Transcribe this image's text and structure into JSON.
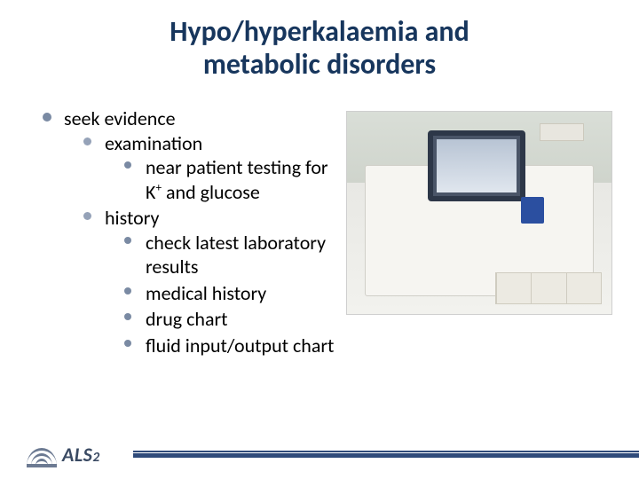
{
  "title_line1": "Hypo/hyperkalaemia and",
  "title_line2": "metabolic disorders",
  "bullets": {
    "seek": "seek evidence",
    "examination": "examination",
    "near_patient": "near patient testing for K",
    "near_patient_sup": "+",
    "near_patient_after": " and glucose",
    "history": "history",
    "check_latest": "check latest laboratory results",
    "medical_history": "medical history",
    "drug_chart": "drug chart",
    "fluid_chart": "fluid input/output chart"
  },
  "logo_text": "ALS",
  "logo_suffix": "2",
  "colors": {
    "title": "#17365d",
    "bullet": "#7a8aa3",
    "accent": "#2f4a7a"
  }
}
